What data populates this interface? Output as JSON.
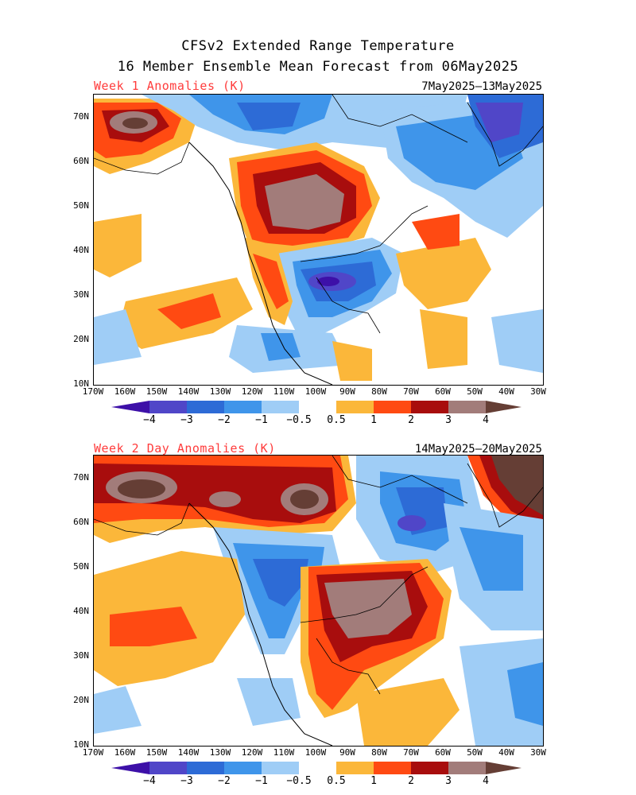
{
  "header": {
    "title_line1": "CFSv2 Extended Range Temperature",
    "title_line2": "16 Member Ensemble Mean Forecast from 06May2025"
  },
  "panels": [
    {
      "label": "Week 1 Anomalies (K)",
      "dates": "7May2025–13May2025"
    },
    {
      "label": "Week 2 Day Anomalies (K)",
      "dates": "14May2025–20May2025"
    }
  ],
  "axes": {
    "lat_ticks": [
      "70N",
      "60N",
      "50N",
      "40N",
      "30N",
      "20N",
      "10N"
    ],
    "lon_ticks": [
      "170W",
      "160W",
      "150W",
      "140W",
      "130W",
      "120W",
      "110W",
      "100W",
      "90W",
      "80W",
      "70W",
      "60W",
      "50W",
      "40W",
      "30W"
    ]
  },
  "colorbar": {
    "labels": [
      "−4",
      "−3",
      "−2",
      "−1",
      "−0.5",
      "0.5",
      "1",
      "2",
      "3",
      "4"
    ],
    "colors": [
      "#3d10a8",
      "#5046c8",
      "#2d6bd6",
      "#3f95ea",
      "#9fcdf6",
      "#ffffff",
      "#fbb73a",
      "#ff4a12",
      "#a80d0d",
      "#a27c7a",
      "#653e35"
    ]
  }
}
